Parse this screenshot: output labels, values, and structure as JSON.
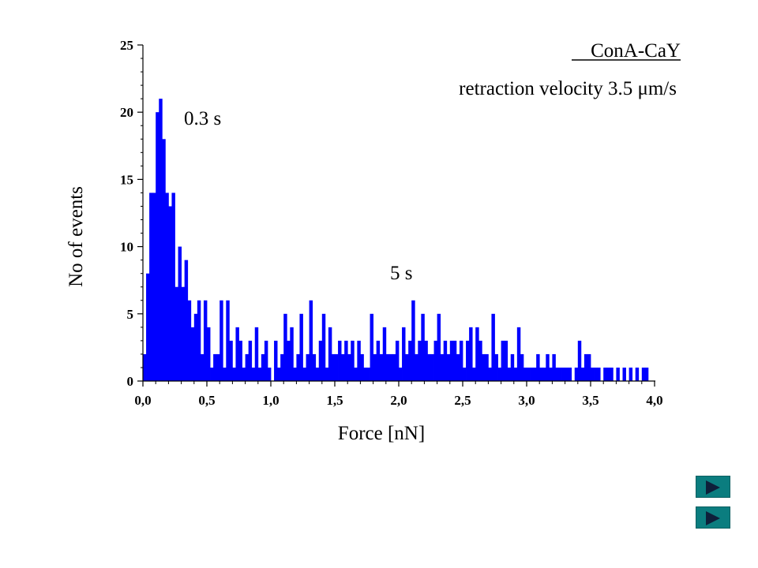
{
  "slide": {
    "title": "ConA-CaY",
    "subtitle": "retraction velocity 3.5 μm/s",
    "annotations": [
      "0.3 s",
      "5 s"
    ]
  },
  "chart_data": {
    "type": "bar",
    "xlabel": "Force [nN]",
    "ylabel": "No of events",
    "xlim": [
      0,
      4
    ],
    "ylim": [
      0,
      25
    ],
    "x_ticks": [
      "0,0",
      "0,5",
      "1,0",
      "1,5",
      "2,0",
      "2,5",
      "3,0",
      "3,5",
      "4,0"
    ],
    "y_ticks": [
      "0",
      "5",
      "10",
      "15",
      "20",
      "25"
    ],
    "bin_width": 0.025,
    "bar_color": "#0000ff",
    "grid": false,
    "values": [
      2,
      8,
      14,
      14,
      20,
      21,
      18,
      14,
      13,
      14,
      7,
      10,
      7,
      9,
      6,
      4,
      5,
      6,
      2,
      6,
      4,
      1,
      2,
      2,
      6,
      1,
      6,
      3,
      1,
      4,
      3,
      1,
      2,
      3,
      1,
      4,
      1,
      2,
      3,
      1,
      0,
      3,
      1,
      2,
      5,
      3,
      4,
      1,
      2,
      5,
      1,
      2,
      6,
      2,
      1,
      3,
      5,
      1,
      4,
      2,
      2,
      3,
      2,
      3,
      2,
      3,
      1,
      3,
      2,
      1,
      1,
      5,
      2,
      3,
      2,
      4,
      2,
      2,
      2,
      3,
      1,
      4,
      2,
      3,
      6,
      2,
      3,
      5,
      3,
      2,
      2,
      3,
      5,
      2,
      3,
      2,
      3,
      3,
      2,
      3,
      1,
      3,
      4,
      1,
      4,
      3,
      2,
      2,
      1,
      5,
      2,
      1,
      3,
      3,
      1,
      2,
      1,
      4,
      2,
      1,
      1,
      1,
      1,
      2,
      1,
      1,
      2,
      1,
      2,
      1,
      1,
      1,
      1,
      1,
      0,
      1,
      3,
      1,
      2,
      2,
      1,
      1,
      1,
      0,
      1,
      1,
      1,
      0,
      1,
      0,
      1,
      0,
      1,
      0,
      1,
      0,
      1,
      1
    ]
  },
  "nav": {
    "next_icon": "play-right-icon",
    "next2_icon": "play-right-icon",
    "color": "#0b7d7f"
  }
}
